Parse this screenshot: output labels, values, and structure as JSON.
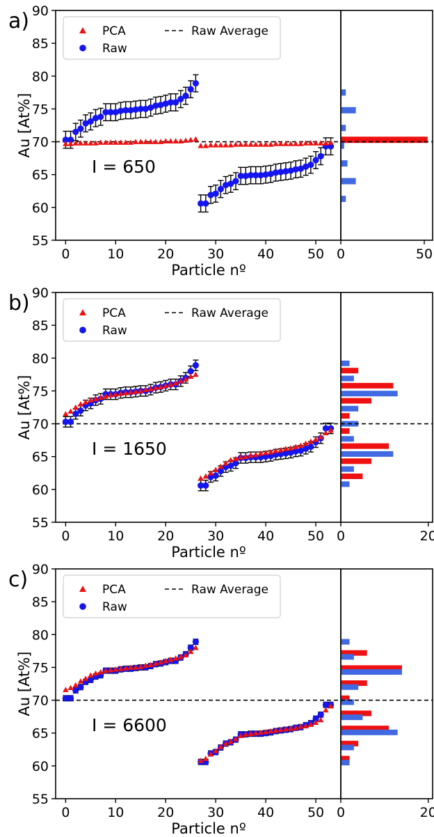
{
  "chart_data": [
    {
      "type": "scatter",
      "panel_label": "a)",
      "annotation": "I = 650",
      "xlabel": "Particle nº",
      "ylabel": "Au [At%]",
      "xlim": [
        -2,
        55
      ],
      "ylim": [
        55,
        90
      ],
      "xticks": [
        0,
        10,
        20,
        30,
        40,
        50
      ],
      "yticks": [
        55,
        60,
        65,
        70,
        75,
        80,
        85,
        90
      ],
      "hist_xlim": [
        0,
        55
      ],
      "hist_xticks": [
        0,
        50
      ],
      "legend": [
        "PCA",
        "Raw",
        "Raw Average"
      ],
      "legend_position": "top-left",
      "raw_average": 70.0,
      "x": [
        0,
        1,
        2,
        3,
        4,
        5,
        6,
        7,
        8,
        9,
        10,
        11,
        12,
        13,
        14,
        15,
        16,
        17,
        18,
        19,
        20,
        21,
        22,
        23,
        24,
        25,
        26,
        27,
        28,
        29,
        30,
        31,
        32,
        33,
        34,
        35,
        36,
        37,
        38,
        39,
        40,
        41,
        42,
        43,
        44,
        45,
        46,
        47,
        48,
        49,
        50,
        51,
        52,
        53
      ],
      "series": [
        {
          "name": "PCA",
          "marker": "triangle",
          "color": "#ee1111",
          "values": [
            69.7,
            69.7,
            69.8,
            69.8,
            69.8,
            69.8,
            69.8,
            69.9,
            69.9,
            69.9,
            69.9,
            69.9,
            69.9,
            69.9,
            70.0,
            70.0,
            70.0,
            70.0,
            70.0,
            70.0,
            70.1,
            70.1,
            70.1,
            70.1,
            70.2,
            70.3,
            70.4,
            69.4,
            69.4,
            69.5,
            69.5,
            69.5,
            69.5,
            69.5,
            69.6,
            69.6,
            69.6,
            69.6,
            69.6,
            69.6,
            69.6,
            69.6,
            69.7,
            69.7,
            69.7,
            69.7,
            69.7,
            69.7,
            69.8,
            69.8,
            69.8,
            69.8,
            69.8,
            69.9
          ]
        },
        {
          "name": "Raw",
          "marker": "circle",
          "color": "#1515ee",
          "values": [
            70.3,
            70.3,
            71.5,
            72.0,
            72.8,
            73.1,
            73.6,
            73.8,
            74.5,
            74.5,
            74.5,
            74.7,
            74.8,
            74.8,
            74.9,
            75.0,
            75.0,
            75.2,
            75.5,
            75.6,
            75.8,
            76.0,
            76.0,
            76.5,
            77.0,
            78.0,
            78.9,
            60.6,
            60.6,
            61.9,
            62.1,
            62.8,
            63.4,
            63.6,
            64.0,
            64.8,
            64.8,
            64.9,
            64.9,
            64.9,
            65.0,
            65.1,
            65.3,
            65.4,
            65.5,
            65.6,
            65.8,
            65.9,
            66.2,
            66.5,
            67.2,
            67.8,
            69.3,
            69.3
          ],
          "error": 1.3
        }
      ],
      "histogram": [
        {
          "name": "PCA",
          "color": "#ee1111",
          "bins": [
            {
              "y": 70.3,
              "count": 52
            }
          ]
        },
        {
          "name": "Raw",
          "color": "#4169e1",
          "bins": [
            {
              "y": 61.3,
              "count": 3
            },
            {
              "y": 64.0,
              "count": 9
            },
            {
              "y": 66.7,
              "count": 4
            },
            {
              "y": 69.4,
              "count": 2
            },
            {
              "y": 72.1,
              "count": 3
            },
            {
              "y": 74.8,
              "count": 9
            },
            {
              "y": 77.5,
              "count": 3
            }
          ]
        }
      ]
    },
    {
      "type": "scatter",
      "panel_label": "b)",
      "annotation": "I = 1650",
      "xlabel": "Particle nº",
      "ylabel": "Au [At%]",
      "xlim": [
        -2,
        55
      ],
      "ylim": [
        55,
        90
      ],
      "xticks": [
        0,
        10,
        20,
        30,
        40,
        50
      ],
      "yticks": [
        55,
        60,
        65,
        70,
        75,
        80,
        85,
        90
      ],
      "hist_xlim": [
        0,
        21
      ],
      "hist_xticks": [
        0,
        20
      ],
      "legend": [
        "PCA",
        "Raw",
        "Raw Average"
      ],
      "legend_position": "top-left",
      "raw_average": 70.0,
      "x": [
        0,
        1,
        2,
        3,
        4,
        5,
        6,
        7,
        8,
        9,
        10,
        11,
        12,
        13,
        14,
        15,
        16,
        17,
        18,
        19,
        20,
        21,
        22,
        23,
        24,
        25,
        26,
        27,
        28,
        29,
        30,
        31,
        32,
        33,
        34,
        35,
        36,
        37,
        38,
        39,
        40,
        41,
        42,
        43,
        44,
        45,
        46,
        47,
        48,
        49,
        50,
        51,
        52,
        53
      ],
      "series": [
        {
          "name": "PCA",
          "marker": "triangle",
          "color": "#ee1111",
          "values": [
            71.5,
            71.9,
            72.5,
            73.0,
            73.3,
            73.6,
            73.8,
            74.0,
            74.2,
            74.4,
            74.5,
            74.6,
            74.7,
            74.8,
            74.9,
            75.0,
            75.2,
            75.3,
            75.5,
            75.6,
            75.8,
            76.0,
            76.2,
            76.5,
            76.8,
            77.2,
            77.5,
            61.7,
            62.0,
            62.5,
            63.0,
            63.5,
            64.0,
            64.5,
            64.7,
            64.9,
            65.0,
            65.2,
            65.3,
            65.5,
            65.6,
            65.7,
            65.9,
            66.0,
            66.2,
            66.3,
            66.5,
            66.7,
            67.0,
            67.3,
            67.6,
            68.0,
            68.6,
            69.0
          ],
          "marker_size": 7
        },
        {
          "name": "Raw",
          "marker": "circle",
          "color": "#1515ee",
          "values": [
            70.3,
            70.3,
            71.5,
            72.0,
            72.8,
            73.1,
            73.6,
            73.8,
            74.5,
            74.5,
            74.5,
            74.7,
            74.8,
            74.8,
            74.9,
            75.0,
            75.0,
            75.2,
            75.5,
            75.6,
            75.8,
            76.0,
            76.0,
            76.5,
            77.0,
            78.0,
            78.9,
            60.6,
            60.6,
            61.9,
            62.1,
            62.8,
            63.4,
            63.6,
            64.0,
            64.8,
            64.8,
            64.9,
            64.9,
            64.9,
            65.0,
            65.1,
            65.3,
            65.4,
            65.5,
            65.6,
            65.8,
            65.9,
            66.2,
            66.5,
            67.2,
            67.8,
            69.3,
            69.3
          ],
          "error": 0.8
        }
      ],
      "histogram": [
        {
          "name": "PCA",
          "color": "#ee1111",
          "bins": [
            {
              "y": 62.0,
              "count": 5
            },
            {
              "y": 64.3,
              "count": 7
            },
            {
              "y": 66.6,
              "count": 11
            },
            {
              "y": 68.9,
              "count": 2
            },
            {
              "y": 71.2,
              "count": 2
            },
            {
              "y": 73.5,
              "count": 7
            },
            {
              "y": 75.8,
              "count": 12
            },
            {
              "y": 78.1,
              "count": 4
            }
          ]
        },
        {
          "name": "Raw",
          "color": "#4169e1",
          "bins": [
            {
              "y": 60.8,
              "count": 2
            },
            {
              "y": 63.1,
              "count": 3
            },
            {
              "y": 65.4,
              "count": 12
            },
            {
              "y": 67.7,
              "count": 3
            },
            {
              "y": 70.0,
              "count": 4
            },
            {
              "y": 72.3,
              "count": 4
            },
            {
              "y": 74.6,
              "count": 13
            },
            {
              "y": 76.9,
              "count": 3
            },
            {
              "y": 79.2,
              "count": 2
            }
          ]
        }
      ]
    },
    {
      "type": "scatter",
      "panel_label": "c)",
      "annotation": "I = 6600",
      "xlabel": "Particle nº",
      "ylabel": "Au [At%]",
      "xlim": [
        -2,
        55
      ],
      "ylim": [
        55,
        90
      ],
      "xticks": [
        0,
        10,
        20,
        30,
        40,
        50
      ],
      "yticks": [
        55,
        60,
        65,
        70,
        75,
        80,
        85,
        90
      ],
      "hist_xlim": [
        0,
        21
      ],
      "hist_xticks": [
        0,
        20
      ],
      "legend": [
        "PCA",
        "Raw",
        "Raw Average"
      ],
      "legend_position": "top-left",
      "raw_average": 70.0,
      "x": [
        0,
        1,
        2,
        3,
        4,
        5,
        6,
        7,
        8,
        9,
        10,
        11,
        12,
        13,
        14,
        15,
        16,
        17,
        18,
        19,
        20,
        21,
        22,
        23,
        24,
        25,
        26,
        27,
        28,
        29,
        30,
        31,
        32,
        33,
        34,
        35,
        36,
        37,
        38,
        39,
        40,
        41,
        42,
        43,
        44,
        45,
        46,
        47,
        48,
        49,
        50,
        51,
        52,
        53
      ],
      "series": [
        {
          "name": "PCA",
          "marker": "triangle",
          "color": "#ee1111",
          "values": [
            71.6,
            71.9,
            72.3,
            72.9,
            73.3,
            73.8,
            74.1,
            74.3,
            74.5,
            74.6,
            74.7,
            74.8,
            74.9,
            75.0,
            75.0,
            75.1,
            75.3,
            75.4,
            75.6,
            75.8,
            76.0,
            76.2,
            76.4,
            76.6,
            76.9,
            77.4,
            78.0,
            60.8,
            61.1,
            61.8,
            62.3,
            62.9,
            63.4,
            63.7,
            64.1,
            64.6,
            64.8,
            64.9,
            65.0,
            65.1,
            65.2,
            65.3,
            65.4,
            65.5,
            65.6,
            65.7,
            65.8,
            66.0,
            66.1,
            66.3,
            66.6,
            67.0,
            68.5,
            69.1
          ],
          "marker_size": 7
        },
        {
          "name": "Raw",
          "marker": "circle",
          "color": "#1515ee",
          "values": [
            70.3,
            70.3,
            71.5,
            72.0,
            72.8,
            73.1,
            73.6,
            73.8,
            74.5,
            74.5,
            74.5,
            74.7,
            74.8,
            74.8,
            74.9,
            75.0,
            75.0,
            75.2,
            75.5,
            75.6,
            75.8,
            76.0,
            76.0,
            76.5,
            77.0,
            78.0,
            78.9,
            60.6,
            60.6,
            61.9,
            62.1,
            62.8,
            63.4,
            63.6,
            64.0,
            64.8,
            64.8,
            64.9,
            64.9,
            64.9,
            65.0,
            65.1,
            65.3,
            65.4,
            65.5,
            65.6,
            65.8,
            65.9,
            66.2,
            66.5,
            67.2,
            67.8,
            69.3,
            69.3
          ],
          "error": 0.4
        }
      ],
      "histogram": [
        {
          "name": "PCA",
          "color": "#ee1111",
          "bins": [
            {
              "y": 61.1,
              "count": 2
            },
            {
              "y": 63.4,
              "count": 4
            },
            {
              "y": 65.7,
              "count": 11
            },
            {
              "y": 68.0,
              "count": 7
            },
            {
              "y": 70.3,
              "count": 2
            },
            {
              "y": 72.6,
              "count": 6
            },
            {
              "y": 74.9,
              "count": 14
            },
            {
              "y": 77.2,
              "count": 6
            }
          ]
        },
        {
          "name": "Raw",
          "color": "#4169e1",
          "bins": [
            {
              "y": 60.5,
              "count": 2
            },
            {
              "y": 62.8,
              "count": 3
            },
            {
              "y": 65.1,
              "count": 13
            },
            {
              "y": 67.4,
              "count": 5
            },
            {
              "y": 69.7,
              "count": 3
            },
            {
              "y": 72.0,
              "count": 4
            },
            {
              "y": 74.3,
              "count": 14
            },
            {
              "y": 76.6,
              "count": 3
            },
            {
              "y": 78.9,
              "count": 2
            }
          ]
        }
      ]
    }
  ]
}
